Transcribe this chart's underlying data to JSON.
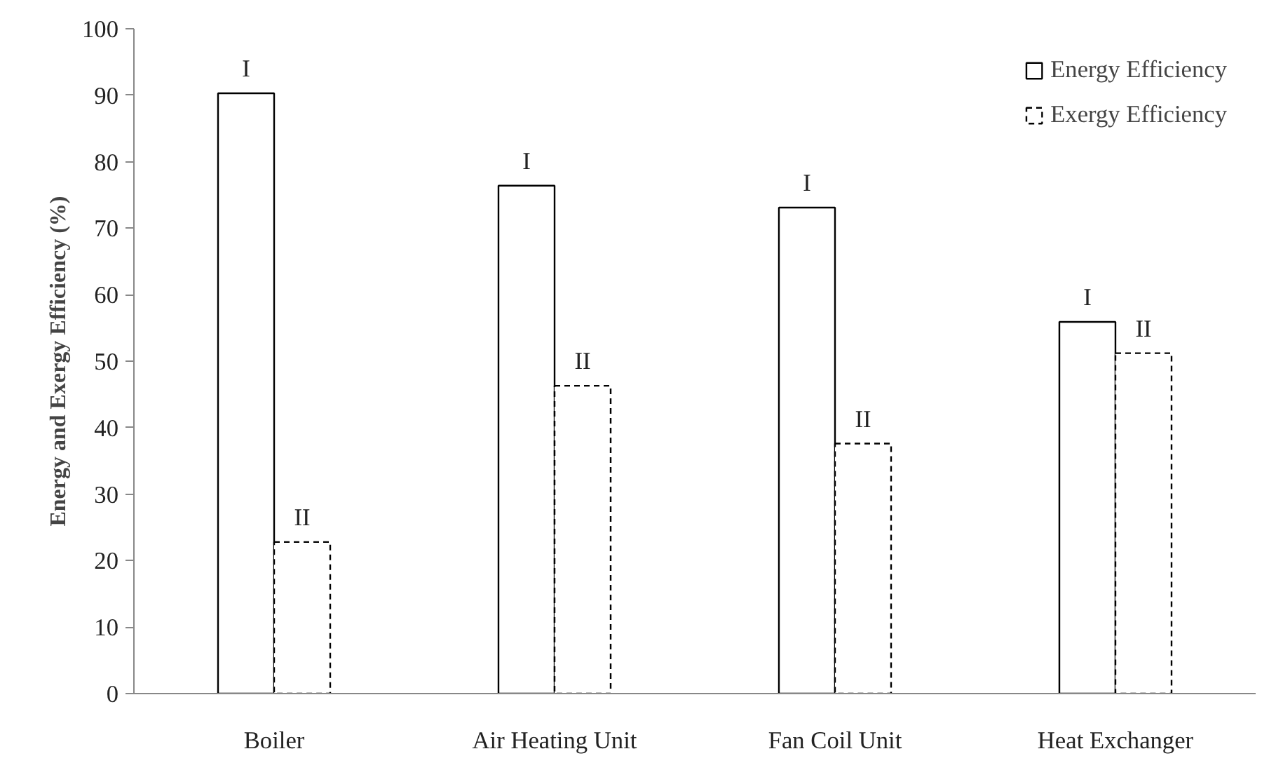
{
  "chart_data": {
    "type": "bar",
    "ylabel": "Energy and Exergy Efficiency (%)",
    "categories": [
      "Boiler",
      "Air Heating Unit",
      "Fan Coil Unit",
      "Heat Exchanger"
    ],
    "series": [
      {
        "name": "Energy Efficiency",
        "color": "#ffffff",
        "line_style": "solid",
        "values": [
          90.3,
          76.4,
          73.1,
          55.9
        ],
        "value_labels": [
          "I",
          "I",
          "I",
          "I"
        ]
      },
      {
        "name": "Exergy Efficiency",
        "color": "#ffffff",
        "line_style": "dashed",
        "values": [
          22.8,
          46.3,
          37.6,
          51.2
        ],
        "value_labels": [
          "II",
          "II",
          "II",
          "II"
        ]
      }
    ],
    "ylim": [
      0,
      100
    ],
    "yticks": [
      0,
      10,
      20,
      30,
      40,
      50,
      60,
      70,
      80,
      90,
      100
    ],
    "grid": false,
    "legend": "top right"
  }
}
